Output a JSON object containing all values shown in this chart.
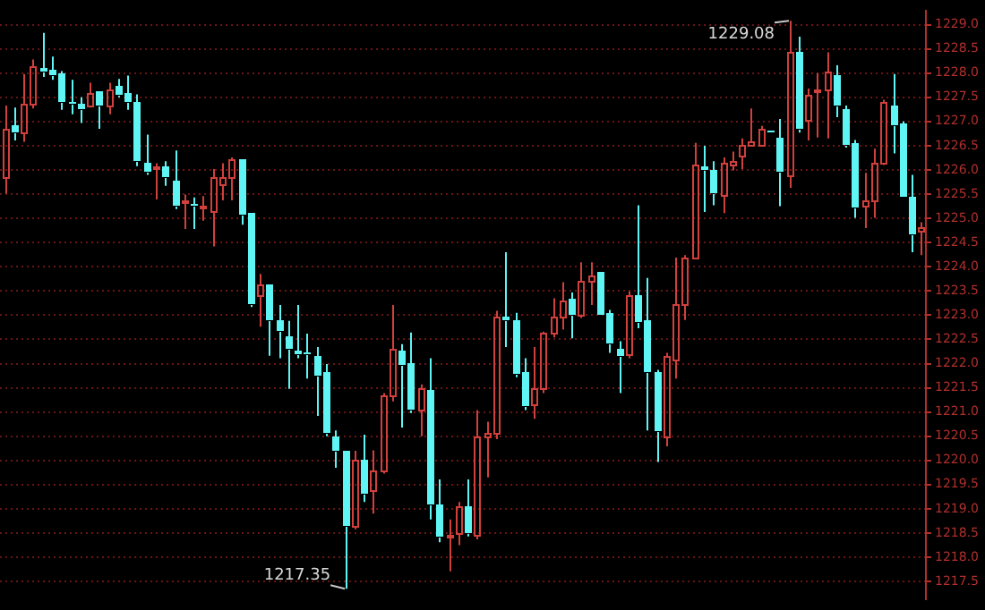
{
  "chart_data": {
    "type": "candlestick",
    "categories": [
      null,
      null,
      null,
      null,
      null,
      null,
      null,
      null,
      null,
      null,
      null,
      null,
      null,
      null,
      null,
      null,
      null,
      null,
      null,
      null,
      null,
      null,
      null,
      null,
      null,
      null,
      null,
      null,
      null,
      null,
      null,
      null,
      null,
      null,
      null,
      null,
      null,
      null,
      null,
      null,
      null,
      null,
      null,
      null,
      null,
      null,
      null,
      null,
      null,
      null,
      null,
      null,
      null,
      null,
      null,
      null,
      null,
      null,
      null,
      null,
      null,
      null,
      null,
      null,
      null,
      null,
      null,
      null,
      null,
      null,
      null,
      null,
      null,
      null,
      null,
      null,
      null,
      null,
      null,
      null,
      null,
      null,
      null,
      null,
      null,
      null,
      null,
      null,
      null,
      null,
      null,
      null,
      null,
      null,
      null,
      null,
      null,
      null
    ],
    "ohlc": [
      [
        1225.84,
        1227.33,
        1225.51,
        1226.85
      ],
      [
        1226.94,
        1227.29,
        1226.61,
        1226.79
      ],
      [
        1226.79,
        1227.98,
        1226.58,
        1227.36
      ],
      [
        1227.36,
        1228.28,
        1227.27,
        1228.13
      ],
      [
        1228.1,
        1228.83,
        1227.92,
        1228.04
      ],
      [
        1228.07,
        1228.34,
        1227.86,
        1227.96
      ],
      [
        1227.98,
        1228.04,
        1227.24,
        1227.41
      ],
      [
        1227.41,
        1227.86,
        1227.15,
        1227.36
      ],
      [
        1227.35,
        1227.5,
        1226.97,
        1227.24
      ],
      [
        1227.33,
        1227.8,
        1227.29,
        1227.6
      ],
      [
        1227.62,
        1227.62,
        1226.85,
        1227.33
      ],
      [
        1227.33,
        1227.8,
        1227.15,
        1227.68
      ],
      [
        1227.72,
        1227.88,
        1227.5,
        1227.56
      ],
      [
        1227.6,
        1227.95,
        1227.24,
        1227.42
      ],
      [
        1227.42,
        1227.56,
        1226.08,
        1226.18
      ],
      [
        1226.14,
        1226.73,
        1225.9,
        1225.96
      ],
      [
        1226.05,
        1226.14,
        1225.39,
        1226.08
      ],
      [
        1226.08,
        1226.18,
        1225.67,
        1225.84
      ],
      [
        1225.78,
        1226.4,
        1225.19,
        1225.25
      ],
      [
        1225.33,
        1225.49,
        1224.78,
        1225.37
      ],
      [
        1225.31,
        1225.43,
        1224.78,
        1225.25
      ],
      [
        1225.23,
        1225.46,
        1224.95,
        1225.27
      ],
      [
        1225.16,
        1226.02,
        1224.42,
        1225.84
      ],
      [
        1225.7,
        1226.14,
        1225.37,
        1225.87
      ],
      [
        1225.84,
        1226.26,
        1225.37,
        1226.22
      ],
      [
        1226.22,
        1226.22,
        1224.87,
        1225.07
      ],
      [
        1225.11,
        1225.11,
        1223.17,
        1223.23
      ],
      [
        1223.41,
        1223.85,
        1222.76,
        1223.65
      ],
      [
        1223.65,
        1223.65,
        1222.16,
        1222.88
      ],
      [
        1222.88,
        1223.21,
        1222.11,
        1222.66
      ],
      [
        1222.58,
        1222.88,
        1221.48,
        1222.31
      ],
      [
        1222.28,
        1223.21,
        1222.11,
        1222.21
      ],
      [
        1222.24,
        1222.62,
        1221.69,
        1222.19
      ],
      [
        1222.17,
        1222.34,
        1220.92,
        1221.75
      ],
      [
        1221.83,
        1221.99,
        1220.5,
        1220.56
      ],
      [
        1220.5,
        1220.62,
        1219.85,
        1220.21
      ],
      [
        1220.21,
        1220.21,
        1217.35,
        1218.66
      ],
      [
        1218.64,
        1220.2,
        1218.58,
        1220.02
      ],
      [
        1220.02,
        1220.53,
        1219.14,
        1219.32
      ],
      [
        1219.38,
        1220.21,
        1218.9,
        1219.79
      ],
      [
        1219.79,
        1221.39,
        1219.73,
        1221.36
      ],
      [
        1221.36,
        1223.21,
        1221.22,
        1222.31
      ],
      [
        1222.28,
        1222.4,
        1220.68,
        1221.99
      ],
      [
        1222.02,
        1222.64,
        1220.98,
        1221.04
      ],
      [
        1221.04,
        1221.57,
        1220.5,
        1221.48
      ],
      [
        1221.45,
        1222.11,
        1218.78,
        1219.1
      ],
      [
        1219.1,
        1219.61,
        1218.31,
        1218.43
      ],
      [
        1218.43,
        1218.78,
        1217.71,
        1218.46
      ],
      [
        1218.49,
        1219.14,
        1218.25,
        1219.06
      ],
      [
        1219.06,
        1219.61,
        1218.43,
        1218.51
      ],
      [
        1218.46,
        1221.04,
        1218.37,
        1220.48
      ],
      [
        1220.5,
        1220.8,
        1219.65,
        1220.56
      ],
      [
        1220.56,
        1223.09,
        1220.44,
        1222.96
      ],
      [
        1222.97,
        1224.3,
        1222.34,
        1222.88
      ],
      [
        1222.9,
        1223.05,
        1221.72,
        1221.79
      ],
      [
        1221.81,
        1222.11,
        1221.04,
        1221.12
      ],
      [
        1221.16,
        1222.34,
        1220.86,
        1221.51
      ],
      [
        1221.48,
        1222.66,
        1221.39,
        1222.62
      ],
      [
        1222.62,
        1223.35,
        1222.54,
        1222.97
      ],
      [
        1222.97,
        1223.68,
        1222.7,
        1223.29
      ],
      [
        1223.33,
        1223.47,
        1222.52,
        1223.02
      ],
      [
        1223.02,
        1224.09,
        1222.94,
        1223.71
      ],
      [
        1223.71,
        1224.09,
        1223.21,
        1223.83
      ],
      [
        1223.89,
        1223.89,
        1223.0,
        1223.02
      ],
      [
        1223.05,
        1223.11,
        1222.22,
        1222.43
      ],
      [
        1222.31,
        1222.46,
        1221.39,
        1222.14
      ],
      [
        1222.19,
        1223.49,
        1222.11,
        1223.41
      ],
      [
        1223.41,
        1225.27,
        1222.73,
        1222.85
      ],
      [
        1222.88,
        1223.77,
        1220.62,
        1221.83
      ],
      [
        1221.83,
        1221.87,
        1219.97,
        1220.62
      ],
      [
        1220.48,
        1222.22,
        1220.29,
        1222.17
      ],
      [
        1222.07,
        1224.19,
        1221.69,
        1223.23
      ],
      [
        1223.23,
        1224.24,
        1222.9,
        1224.2
      ],
      [
        1224.2,
        1226.56,
        1224.18,
        1226.1
      ],
      [
        1226.06,
        1226.5,
        1225.13,
        1226.01
      ],
      [
        1225.99,
        1226.18,
        1225.27,
        1225.51
      ],
      [
        1225.49,
        1226.26,
        1225.11,
        1226.14
      ],
      [
        1226.1,
        1226.38,
        1225.99,
        1226.2
      ],
      [
        1226.29,
        1226.65,
        1226.02,
        1226.53
      ],
      [
        1226.53,
        1227.27,
        1226.5,
        1226.58
      ],
      [
        1226.53,
        1226.91,
        1226.5,
        1226.85
      ],
      [
        1226.8,
        1226.8,
        1226.79,
        1226.79
      ],
      [
        1226.65,
        1227.05,
        1225.25,
        1225.96
      ],
      [
        1225.9,
        1229.08,
        1225.63,
        1228.45
      ],
      [
        1228.45,
        1228.75,
        1226.77,
        1226.85
      ],
      [
        1227.03,
        1227.68,
        1226.61,
        1227.56
      ],
      [
        1227.62,
        1228.0,
        1226.67,
        1227.68
      ],
      [
        1227.68,
        1228.43,
        1226.65,
        1228.04
      ],
      [
        1227.96,
        1228.16,
        1227.09,
        1227.33
      ],
      [
        1227.27,
        1227.33,
        1226.46,
        1226.53
      ],
      [
        1226.56,
        1226.62,
        1225.01,
        1225.23
      ],
      [
        1225.25,
        1225.94,
        1224.8,
        1225.37
      ],
      [
        1225.37,
        1226.44,
        1225.01,
        1226.14
      ],
      [
        1226.14,
        1227.45,
        1226.1,
        1227.41
      ],
      [
        1227.33,
        1227.98,
        1226.34,
        1226.94
      ],
      [
        1226.97,
        1227.0,
        1225.43,
        1225.46
      ],
      [
        1225.46,
        1225.9,
        1224.3,
        1224.68
      ],
      [
        1224.75,
        1224.92,
        1224.24,
        1224.8
      ]
    ],
    "colors": [
      "#d0403c",
      "#5ff5f5",
      "#d0403c",
      "#d0403c",
      "#5ff5f5",
      "#5ff5f5",
      "#5ff5f5",
      "#5ff5f5",
      "#5ff5f5",
      "#d0403c",
      "#5ff5f5",
      "#d0403c",
      "#5ff5f5",
      "#5ff5f5",
      "#5ff5f5",
      "#5ff5f5",
      "#d0403c",
      "#5ff5f5",
      "#5ff5f5",
      "#d0403c",
      "#5ff5f5",
      "#d0403c",
      "#d0403c",
      "#d0403c",
      "#d0403c",
      "#5ff5f5",
      "#5ff5f5",
      "#d0403c",
      "#5ff5f5",
      "#5ff5f5",
      "#5ff5f5",
      "#5ff5f5",
      "#5ff5f5",
      "#5ff5f5",
      "#5ff5f5",
      "#5ff5f5",
      "#5ff5f5",
      "#d0403c",
      "#5ff5f5",
      "#d0403c",
      "#d0403c",
      "#d0403c",
      "#5ff5f5",
      "#5ff5f5",
      "#d0403c",
      "#5ff5f5",
      "#5ff5f5",
      "#d0403c",
      "#d0403c",
      "#5ff5f5",
      "#d0403c",
      "#d0403c",
      "#d0403c",
      "#5ff5f5",
      "#5ff5f5",
      "#5ff5f5",
      "#d0403c",
      "#d0403c",
      "#d0403c",
      "#d0403c",
      "#5ff5f5",
      "#d0403c",
      "#d0403c",
      "#5ff5f5",
      "#5ff5f5",
      "#5ff5f5",
      "#d0403c",
      "#5ff5f5",
      "#5ff5f5",
      "#5ff5f5",
      "#d0403c",
      "#d0403c",
      "#d0403c",
      "#d0403c",
      "#5ff5f5",
      "#5ff5f5",
      "#d0403c",
      "#d0403c",
      "#d0403c",
      "#d0403c",
      "#d0403c",
      "#5ff5f5",
      "#5ff5f5",
      "#d0403c",
      "#5ff5f5",
      "#d0403c",
      "#d0403c",
      "#d0403c",
      "#5ff5f5",
      "#5ff5f5",
      "#5ff5f5",
      "#d0403c",
      "#d0403c",
      "#d0403c",
      "#5ff5f5",
      "#5ff5f5",
      "#5ff5f5",
      "#d0403c"
    ],
    "ylim": [
      1217.14,
      1229.28
    ],
    "yticks": [
      {
        "value": 1217.5,
        "label": "1217.5"
      },
      {
        "value": 1218,
        "label": "1218.0"
      },
      1218.5,
      {
        "value": 1219,
        "label": "1219.0"
      },
      1219.5,
      {
        "value": 1220,
        "label": "1220.0"
      },
      1220.5,
      {
        "value": 1221,
        "label": "1221.0"
      },
      1221.5,
      {
        "value": 1222,
        "label": "1222.0"
      },
      1222.5,
      {
        "value": 1223,
        "label": "1223.0"
      },
      1223.5,
      {
        "value": 1224,
        "label": "1224.0"
      },
      1224.5,
      {
        "value": 1225,
        "label": "1225.0"
      },
      1225.5,
      {
        "value": 1226,
        "label": "1226.0"
      },
      1226.5,
      {
        "value": 1227,
        "label": "1227.0"
      },
      1227.5,
      {
        "value": 1228,
        "label": "1228.0"
      },
      1228.5,
      {
        "value": 1229,
        "label": "1229.0"
      }
    ],
    "grid": "y",
    "tick_labels": "y",
    "legend": false,
    "annotations": [
      "1229.08",
      "1217.35"
    ]
  }
}
